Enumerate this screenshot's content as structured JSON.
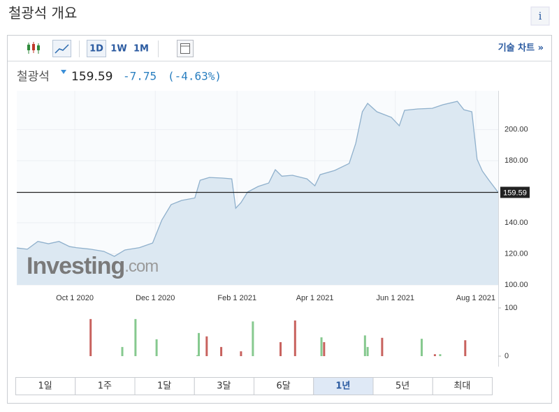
{
  "header": {
    "title": "철광석 개요",
    "info": "i"
  },
  "toolbar": {
    "intervals": [
      "1D",
      "1W",
      "1M"
    ],
    "link": "기술 차트 »"
  },
  "quote": {
    "name": "철광석",
    "change": "-7.75",
    "change_percent": "(-4.63%)"
  },
  "watermark": {
    "brand": "Investing",
    "suffix": ".com"
  },
  "chart_data": [
    {
      "type": "area",
      "color": "#8fb0cc",
      "fill": "#dce8f2",
      "x": [
        "2020-08-18",
        "2020-08-26",
        "2020-09-03",
        "2020-09-11",
        "2020-09-19",
        "2020-09-27",
        "2020-10-02",
        "2020-10-13",
        "2020-10-23",
        "2020-10-31",
        "2020-11-08",
        "2020-11-19",
        "2020-11-29",
        "2020-12-06",
        "2020-12-13",
        "2020-12-21",
        "2020-12-31",
        "2021-01-04",
        "2021-01-11",
        "2021-01-21",
        "2021-01-28",
        "2021-01-31",
        "2021-02-04",
        "2021-02-09",
        "2021-02-17",
        "2021-02-25",
        "2021-03-02",
        "2021-03-07",
        "2021-03-15",
        "2021-03-26",
        "2021-04-01",
        "2021-04-05",
        "2021-04-16",
        "2021-04-27",
        "2021-05-02",
        "2021-05-07",
        "2021-05-11",
        "2021-05-18",
        "2021-05-29",
        "2021-06-04",
        "2021-06-08",
        "2021-06-18",
        "2021-06-29",
        "2021-07-07",
        "2021-07-18",
        "2021-07-23",
        "2021-07-29",
        "2021-08-02",
        "2021-08-06",
        "2021-08-11",
        "2021-08-18"
      ],
      "values": [
        123.8,
        123,
        128,
        126.5,
        128,
        124.7,
        124,
        123,
        121.6,
        118.4,
        122.5,
        124,
        127,
        141.8,
        151.7,
        154.4,
        156,
        167.4,
        169.2,
        168.8,
        168.3,
        149.4,
        153,
        159.8,
        163.4,
        165.6,
        174.2,
        170,
        170.6,
        168.3,
        163.8,
        171,
        173.7,
        178.2,
        191.2,
        211.5,
        216.9,
        211.5,
        207.9,
        202.5,
        212.4,
        213.3,
        213.7,
        216,
        218.2,
        212.8,
        211.5,
        180.9,
        173.3,
        167.4,
        159.59
      ],
      "last_price": 159.59,
      "xlim": [
        "2020-08-18",
        "2021-08-18"
      ],
      "xticks": [
        {
          "value": "2020-10-01",
          "label": "Oct 1 2020"
        },
        {
          "value": "2020-12-01",
          "label": "Dec 1 2020"
        },
        {
          "value": "2021-02-01",
          "label": "Feb 1 2021"
        },
        {
          "value": "2021-04-01",
          "label": "Apr 1 2021"
        },
        {
          "value": "2021-06-01",
          "label": "Jun 1 2021"
        },
        {
          "value": "2021-08-01",
          "label": "Aug 1 2021"
        }
      ],
      "ylim": [
        100,
        225
      ],
      "yticks": [
        {
          "value": 100,
          "label": "100.00"
        },
        {
          "value": 120,
          "label": "120.00"
        },
        {
          "value": 140,
          "label": "140.00"
        },
        {
          "value": 180,
          "label": "180.00"
        },
        {
          "value": 200,
          "label": "200.00"
        }
      ],
      "grid": true
    },
    {
      "type": "bar",
      "x": [
        "2020-10-13",
        "2020-11-06",
        "2020-11-16",
        "2020-12-02",
        "2021-01-02",
        "2021-01-03",
        "2021-01-09",
        "2021-01-20",
        "2021-02-04",
        "2021-02-13",
        "2021-03-06",
        "2021-03-17",
        "2021-04-06",
        "2021-04-08",
        "2021-05-09",
        "2021-05-11",
        "2021-05-22",
        "2021-06-21",
        "2021-07-01",
        "2021-07-05",
        "2021-07-24"
      ],
      "values": [
        77,
        19,
        77,
        35,
        2,
        48,
        41,
        19,
        10,
        72,
        29,
        74,
        39,
        29,
        43,
        19,
        38,
        36,
        4,
        4,
        33
      ],
      "colors": [
        "#c8625e",
        "#86c98f",
        "#86c98f",
        "#86c98f",
        "#86c98f",
        "#86c98f",
        "#c8625e",
        "#c8625e",
        "#c8625e",
        "#86c98f",
        "#c8625e",
        "#c8625e",
        "#86c98f",
        "#c8625e",
        "#86c98f",
        "#86c98f",
        "#c8625e",
        "#86c98f",
        "#c8625e",
        "#86c98f",
        "#c8625e"
      ],
      "xlim": [
        "2020-08-18",
        "2021-08-18"
      ],
      "ylim": [
        0,
        100
      ],
      "yticks": [
        0,
        100
      ]
    }
  ],
  "periods": {
    "labels": [
      "1일",
      "1주",
      "1달",
      "3달",
      "6달",
      "1년",
      "5년",
      "최대"
    ],
    "selected": "1년"
  }
}
